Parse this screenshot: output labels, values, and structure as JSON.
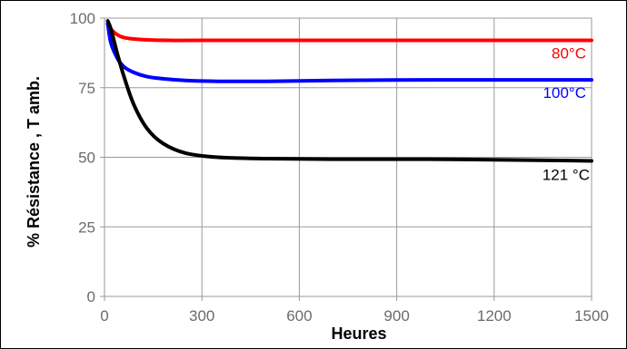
{
  "chart_data": {
    "type": "line",
    "title": "",
    "xlabel": "Heures",
    "ylabel": "% Résistance , T amb.",
    "xlim": [
      0,
      1500
    ],
    "ylim": [
      0,
      100
    ],
    "xticks": [
      0,
      300,
      600,
      900,
      1200,
      1500
    ],
    "yticks": [
      0,
      25,
      50,
      75,
      100
    ],
    "grid": true,
    "series": [
      {
        "name": "80°C",
        "color": "#ff0000",
        "x": [
          10,
          20,
          40,
          60,
          90,
          130,
          200,
          300,
          500,
          800,
          1100,
          1400,
          1500
        ],
        "y": [
          98,
          96,
          94,
          93,
          92.5,
          92.2,
          92,
          92,
          92,
          92,
          92,
          92,
          92
        ]
      },
      {
        "name": "100°C",
        "color": "#0000ff",
        "x": [
          10,
          20,
          40,
          60,
          90,
          130,
          180,
          250,
          350,
          500,
          700,
          1000,
          1300,
          1500
        ],
        "y": [
          98,
          91,
          85.5,
          82.5,
          80.5,
          79,
          78.2,
          77.6,
          77.3,
          77.3,
          77.6,
          77.8,
          77.8,
          77.8
        ]
      },
      {
        "name": "121 °C",
        "color": "#000000",
        "x": [
          10,
          20,
          40,
          60,
          90,
          130,
          180,
          250,
          350,
          500,
          700,
          1000,
          1300,
          1500
        ],
        "y": [
          99,
          96,
          87,
          79,
          69,
          60.5,
          55,
          51.5,
          50,
          49.5,
          49.3,
          49.3,
          49,
          48.7
        ]
      }
    ]
  }
}
